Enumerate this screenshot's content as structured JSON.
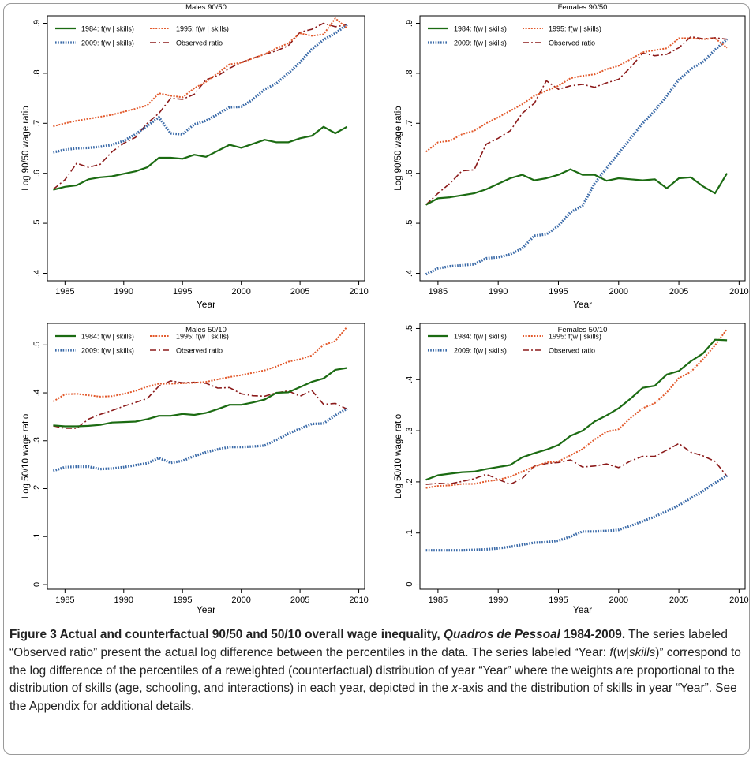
{
  "chart_data": [
    {
      "type": "line",
      "title": "Males 90/50",
      "xlabel": "Year",
      "ylabel": "Log 90/50 wage ratio",
      "xlim": [
        1983.5,
        2010.5
      ],
      "ylim": [
        0.385,
        0.915
      ],
      "xticks": [
        1985,
        1990,
        1995,
        2000,
        2005,
        2010
      ],
      "xtick_labels": [
        "1985",
        "1990",
        "1995",
        "2000",
        "2005",
        "2010"
      ],
      "yticks": [
        0.4,
        0.5,
        0.6,
        0.7,
        0.8,
        0.9
      ],
      "ytick_labels": [
        ".4",
        ".5",
        ".6",
        ".7",
        ".8",
        ".9"
      ],
      "legend": [
        "1984: f(w | skills)",
        "1995: f(w | skills)",
        "2009: f(w | skills)",
        "Observed ratio"
      ],
      "x": [
        1984,
        1985,
        1986,
        1987,
        1988,
        1989,
        1990,
        1991,
        1992,
        1993,
        1994,
        1995,
        1996,
        1997,
        1998,
        1999,
        2000,
        2001,
        2002,
        2003,
        2004,
        2005,
        2006,
        2007,
        2008,
        2009
      ],
      "series": [
        {
          "name": "1984: f(w | skills)",
          "color": "#1b6b12",
          "style": "solid",
          "values": [
            0.567,
            0.573,
            0.576,
            0.588,
            0.592,
            0.594,
            0.599,
            0.604,
            0.612,
            0.631,
            0.631,
            0.629,
            0.637,
            0.633,
            0.645,
            0.657,
            0.651,
            0.659,
            0.667,
            0.662,
            0.662,
            0.67,
            0.675,
            0.693,
            0.68,
            0.693
          ]
        },
        {
          "name": "1995: f(w | skills)",
          "color": "#e2592b",
          "style": "dotted",
          "values": [
            0.694,
            0.7,
            0.705,
            0.709,
            0.713,
            0.717,
            0.723,
            0.729,
            0.736,
            0.76,
            0.755,
            0.752,
            0.77,
            0.783,
            0.8,
            0.818,
            0.821,
            0.83,
            0.838,
            0.85,
            0.86,
            0.88,
            0.875,
            0.878,
            0.91,
            0.89
          ]
        },
        {
          "name": "2009: f(w | skills)",
          "color": "#3a6aa8",
          "style": "dashed",
          "values": [
            0.642,
            0.647,
            0.65,
            0.651,
            0.653,
            0.657,
            0.665,
            0.678,
            0.695,
            0.712,
            0.68,
            0.678,
            0.698,
            0.705,
            0.718,
            0.732,
            0.733,
            0.748,
            0.768,
            0.78,
            0.8,
            0.822,
            0.848,
            0.867,
            0.88,
            0.897
          ]
        },
        {
          "name": "Observed ratio",
          "color": "#8b1a1a",
          "style": "dashdot",
          "values": [
            0.568,
            0.587,
            0.62,
            0.612,
            0.618,
            0.643,
            0.66,
            0.672,
            0.7,
            0.72,
            0.75,
            0.748,
            0.758,
            0.787,
            0.795,
            0.81,
            0.822,
            0.83,
            0.838,
            0.845,
            0.855,
            0.882,
            0.888,
            0.9,
            0.893,
            0.897
          ]
        }
      ]
    },
    {
      "type": "line",
      "title": "Females 90/50",
      "xlabel": "Year",
      "ylabel": "Log 90/50 wage ratio",
      "xlim": [
        1983.5,
        2010.5
      ],
      "ylim": [
        0.385,
        0.915
      ],
      "xticks": [
        1985,
        1990,
        1995,
        2000,
        2005,
        2010
      ],
      "xtick_labels": [
        "1985",
        "1990",
        "1995",
        "2000",
        "2005",
        "2010"
      ],
      "yticks": [
        0.4,
        0.5,
        0.6,
        0.7,
        0.8,
        0.9
      ],
      "ytick_labels": [
        ".4",
        ".5",
        ".6",
        ".7",
        ".8",
        ".9"
      ],
      "legend": [
        "1984: f(w | skills)",
        "1995: f(w | skills)",
        "2009: f(w | skills)",
        "Observed ratio"
      ],
      "x": [
        1984,
        1985,
        1986,
        1987,
        1988,
        1989,
        1990,
        1991,
        1992,
        1993,
        1994,
        1995,
        1996,
        1997,
        1998,
        1999,
        2000,
        2001,
        2002,
        2003,
        2004,
        2005,
        2006,
        2007,
        2008,
        2009
      ],
      "series": [
        {
          "name": "1984: f(w | skills)",
          "color": "#1b6b12",
          "style": "solid",
          "values": [
            0.537,
            0.55,
            0.552,
            0.556,
            0.56,
            0.568,
            0.579,
            0.59,
            0.597,
            0.586,
            0.59,
            0.597,
            0.608,
            0.597,
            0.597,
            0.585,
            0.59,
            0.588,
            0.586,
            0.588,
            0.57,
            0.59,
            0.592,
            0.574,
            0.56,
            0.6
          ]
        },
        {
          "name": "1995: f(w | skills)",
          "color": "#e2592b",
          "style": "dotted",
          "values": [
            0.643,
            0.662,
            0.665,
            0.678,
            0.685,
            0.7,
            0.712,
            0.725,
            0.738,
            0.755,
            0.765,
            0.775,
            0.79,
            0.795,
            0.798,
            0.808,
            0.815,
            0.828,
            0.842,
            0.846,
            0.85,
            0.87,
            0.87,
            0.868,
            0.87,
            0.851
          ]
        },
        {
          "name": "2009: f(w | skills)",
          "color": "#3a6aa8",
          "style": "dashed",
          "values": [
            0.398,
            0.41,
            0.414,
            0.416,
            0.418,
            0.43,
            0.432,
            0.438,
            0.45,
            0.475,
            0.478,
            0.495,
            0.522,
            0.535,
            0.58,
            0.61,
            0.64,
            0.67,
            0.7,
            0.725,
            0.755,
            0.787,
            0.808,
            0.823,
            0.847,
            0.868
          ]
        },
        {
          "name": "Observed ratio",
          "color": "#8b1a1a",
          "style": "dashdot",
          "values": [
            0.537,
            0.56,
            0.58,
            0.605,
            0.607,
            0.658,
            0.67,
            0.685,
            0.72,
            0.74,
            0.785,
            0.768,
            0.775,
            0.778,
            0.772,
            0.781,
            0.788,
            0.812,
            0.84,
            0.835,
            0.838,
            0.851,
            0.873,
            0.869,
            0.871,
            0.868
          ]
        }
      ]
    },
    {
      "type": "line",
      "title": "Males 50/10",
      "xlabel": "Year",
      "ylabel": "Log 50/10 wage ratio",
      "xlim": [
        1983.5,
        2010.5
      ],
      "ylim": [
        -0.01,
        0.545
      ],
      "xticks": [
        1985,
        1990,
        1995,
        2000,
        2005,
        2010
      ],
      "xtick_labels": [
        "1985",
        "1990",
        "1995",
        "2000",
        "2005",
        "2010"
      ],
      "yticks": [
        0,
        0.1,
        0.2,
        0.3,
        0.4,
        0.5
      ],
      "ytick_labels": [
        "0",
        ".1",
        ".2",
        ".3",
        ".4",
        ".5"
      ],
      "legend": [
        "1984: f(w | skills)",
        "1995: f(w | skills)",
        "2009: f(w | skills)",
        "Observed ratio"
      ],
      "x": [
        1984,
        1985,
        1986,
        1987,
        1988,
        1989,
        1990,
        1991,
        1992,
        1993,
        1994,
        1995,
        1996,
        1997,
        1998,
        1999,
        2000,
        2001,
        2002,
        2003,
        2004,
        2005,
        2006,
        2007,
        2008,
        2009
      ],
      "series": [
        {
          "name": "1984: f(w | skills)",
          "color": "#1b6b12",
          "style": "solid",
          "values": [
            0.332,
            0.33,
            0.33,
            0.331,
            0.333,
            0.338,
            0.339,
            0.34,
            0.345,
            0.352,
            0.352,
            0.356,
            0.354,
            0.358,
            0.366,
            0.375,
            0.375,
            0.38,
            0.386,
            0.4,
            0.401,
            0.412,
            0.423,
            0.43,
            0.448,
            0.452
          ]
        },
        {
          "name": "1995: f(w | skills)",
          "color": "#e2592b",
          "style": "dotted",
          "values": [
            0.382,
            0.397,
            0.398,
            0.395,
            0.392,
            0.393,
            0.398,
            0.404,
            0.413,
            0.419,
            0.419,
            0.42,
            0.421,
            0.423,
            0.428,
            0.433,
            0.437,
            0.442,
            0.447,
            0.455,
            0.465,
            0.47,
            0.478,
            0.5,
            0.508,
            0.538
          ]
        },
        {
          "name": "2009: f(w | skills)",
          "color": "#3a6aa8",
          "style": "dashed",
          "values": [
            0.237,
            0.245,
            0.246,
            0.246,
            0.241,
            0.242,
            0.245,
            0.249,
            0.253,
            0.264,
            0.254,
            0.258,
            0.268,
            0.276,
            0.282,
            0.287,
            0.287,
            0.288,
            0.29,
            0.302,
            0.315,
            0.325,
            0.335,
            0.336,
            0.353,
            0.367
          ]
        },
        {
          "name": "Observed ratio",
          "color": "#8b1a1a",
          "style": "dashdot",
          "values": [
            0.331,
            0.326,
            0.326,
            0.345,
            0.355,
            0.363,
            0.372,
            0.38,
            0.388,
            0.414,
            0.425,
            0.421,
            0.422,
            0.42,
            0.41,
            0.411,
            0.398,
            0.394,
            0.393,
            0.4,
            0.404,
            0.393,
            0.405,
            0.376,
            0.378,
            0.366
          ]
        }
      ]
    },
    {
      "type": "line",
      "title": "Females 50/10",
      "xlabel": "Year",
      "ylabel": "Log 50/10 wage ratio",
      "xlim": [
        1983.5,
        2010.5
      ],
      "ylim": [
        -0.01,
        0.51
      ],
      "xticks": [
        1985,
        1990,
        1995,
        2000,
        2005,
        2010
      ],
      "xtick_labels": [
        "1985",
        "1990",
        "1995",
        "2000",
        "2005",
        "2010"
      ],
      "yticks": [
        0,
        0.1,
        0.2,
        0.3,
        0.4,
        0.5
      ],
      "ytick_labels": [
        "0",
        ".1",
        ".2",
        ".3",
        ".4",
        ".5"
      ],
      "legend": [
        "1984: f(w | skills)",
        "1995: f(w | skills)",
        "2009: f(w | skills)",
        "Observed ratio"
      ],
      "x": [
        1984,
        1985,
        1986,
        1987,
        1988,
        1989,
        1990,
        1991,
        1992,
        1993,
        1994,
        1995,
        1996,
        1997,
        1998,
        1999,
        2000,
        2001,
        2002,
        2003,
        2004,
        2005,
        2006,
        2007,
        2008,
        2009
      ],
      "series": [
        {
          "name": "1984: f(w | skills)",
          "color": "#1b6b12",
          "style": "solid",
          "values": [
            0.204,
            0.213,
            0.216,
            0.219,
            0.22,
            0.225,
            0.229,
            0.233,
            0.248,
            0.256,
            0.263,
            0.272,
            0.29,
            0.3,
            0.318,
            0.33,
            0.344,
            0.363,
            0.384,
            0.388,
            0.41,
            0.417,
            0.436,
            0.451,
            0.478,
            0.477
          ]
        },
        {
          "name": "1995: f(w | skills)",
          "color": "#e2592b",
          "style": "dotted",
          "values": [
            0.188,
            0.192,
            0.193,
            0.196,
            0.196,
            0.201,
            0.204,
            0.21,
            0.22,
            0.23,
            0.238,
            0.24,
            0.252,
            0.264,
            0.283,
            0.298,
            0.303,
            0.325,
            0.344,
            0.354,
            0.375,
            0.403,
            0.415,
            0.44,
            0.467,
            0.499
          ]
        },
        {
          "name": "2009: f(w | skills)",
          "color": "#3a6aa8",
          "style": "dashed",
          "values": [
            0.066,
            0.066,
            0.066,
            0.066,
            0.067,
            0.068,
            0.07,
            0.073,
            0.077,
            0.081,
            0.082,
            0.085,
            0.093,
            0.103,
            0.103,
            0.104,
            0.106,
            0.114,
            0.123,
            0.132,
            0.143,
            0.154,
            0.168,
            0.182,
            0.198,
            0.212
          ]
        },
        {
          "name": "Observed ratio",
          "color": "#8b1a1a",
          "style": "dashdot",
          "values": [
            0.195,
            0.197,
            0.196,
            0.201,
            0.206,
            0.215,
            0.205,
            0.195,
            0.207,
            0.231,
            0.236,
            0.238,
            0.243,
            0.229,
            0.231,
            0.235,
            0.228,
            0.241,
            0.25,
            0.25,
            0.262,
            0.275,
            0.258,
            0.251,
            0.24,
            0.211
          ]
        }
      ]
    }
  ],
  "caption": {
    "label": "Figure 3",
    "title_a": " Actual and counterfactual 90/50 and 50/10 overall wage inequality, ",
    "title_italic": "Quadros de Pessoal",
    "title_b": " 1984-2009.",
    "body_1": " The series labeled “Observed ratio” present the actual log difference between the percentiles in the data. The series labeled “Year: ",
    "formula_f": "f",
    "formula_open": "(",
    "formula_w": "w",
    "formula_bar": "|",
    "formula_skills": "skills",
    "formula_close": ")",
    "body_2": "” correspond to the log difference of the percentiles of a reweighted (counterfactual) distribution of year “Year” where the weights are proportional to the distribution of skills (age, schooling, and interactions) in each year, depicted in the ",
    "axis_italic": "x",
    "body_3": "-axis and the distribution of skills in year “Year”. See the Appendix for additional details."
  }
}
